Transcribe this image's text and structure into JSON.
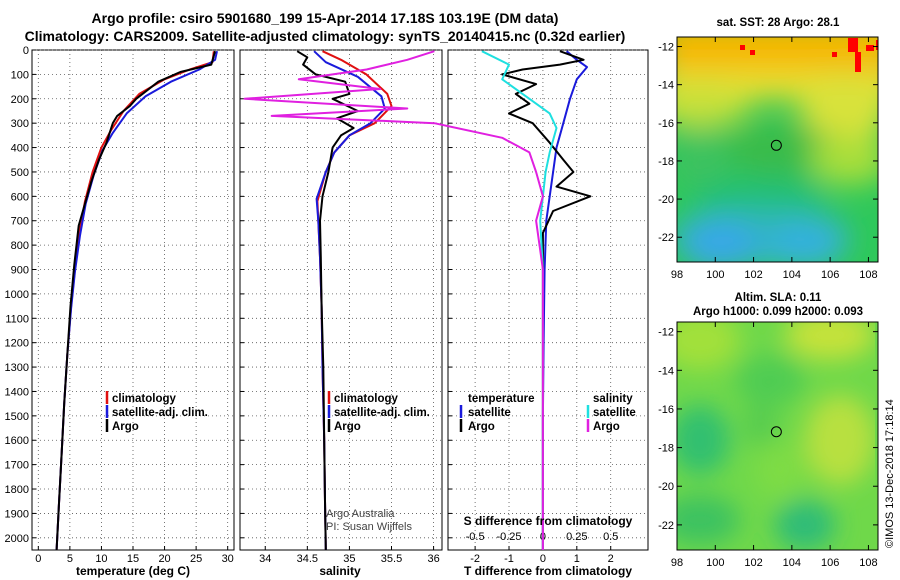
{
  "title_line1": "Argo profile: csiro 5901680_199 15-Apr-2014 17.18S 103.19E (DM data)",
  "title_line2": "Climatology: CARS2009. Satellite-adjusted climatology: synTS_20140415.nc (0.32d earlier)",
  "colors": {
    "climatology": "#e01010",
    "satellite": "#1a1adb",
    "argo": "#000000",
    "sat_salinity": "#1ee0e0",
    "argo_salinity": "#e020e0"
  },
  "credit": {
    "line1": "Argo Australia",
    "line2": "PI: Susan Wijffels"
  },
  "imos_stamp": "©IMOS 13-Dec-2018 17:18:14",
  "chart_data": [
    {
      "type": "line",
      "id": "temperature",
      "xlabel": "temperature (deg C)",
      "ylabel": "",
      "xlim": [
        -1,
        31
      ],
      "ylim": [
        2050,
        0
      ],
      "xticks": [
        "0",
        "5",
        "10",
        "15",
        "20",
        "25",
        "30"
      ],
      "yticks": [
        "0",
        "100",
        "200",
        "300",
        "400",
        "500",
        "600",
        "700",
        "800",
        "900",
        "1000",
        "1100",
        "1200",
        "1300",
        "1400",
        "1500",
        "1600",
        "1700",
        "1800",
        "1900",
        "2000"
      ],
      "legend": [
        "climatology",
        "satellite-adj. clim.",
        "Argo"
      ],
      "series": [
        {
          "name": "climatology",
          "points": [
            [
              27.8,
              5
            ],
            [
              27.6,
              50
            ],
            [
              24,
              80
            ],
            [
              20,
              120
            ],
            [
              16,
              180
            ],
            [
              13.5,
              250
            ],
            [
              11.5,
              330
            ],
            [
              10,
              400
            ],
            [
              8.6,
              500
            ],
            [
              7.4,
              620
            ],
            [
              6.5,
              750
            ],
            [
              5.8,
              900
            ],
            [
              5.2,
              1050
            ],
            [
              4.6,
              1250
            ],
            [
              4.1,
              1450
            ],
            [
              3.7,
              1650
            ],
            [
              3.3,
              1850
            ],
            [
              2.9,
              2050
            ]
          ]
        },
        {
          "name": "satellite-adj. clim.",
          "points": [
            [
              28.3,
              5
            ],
            [
              28.0,
              40
            ],
            [
              25.5,
              80
            ],
            [
              21,
              130
            ],
            [
              17,
              190
            ],
            [
              14,
              260
            ],
            [
              11.8,
              340
            ],
            [
              10.2,
              410
            ],
            [
              8.8,
              510
            ],
            [
              7.5,
              630
            ],
            [
              6.6,
              760
            ],
            [
              5.8,
              910
            ],
            [
              5.2,
              1060
            ],
            [
              4.6,
              1250
            ],
            [
              4.1,
              1450
            ],
            [
              3.7,
              1650
            ],
            [
              3.3,
              1850
            ],
            [
              2.9,
              2050
            ]
          ]
        },
        {
          "name": "Argo",
          "points": [
            [
              28.0,
              5
            ],
            [
              27.4,
              60
            ],
            [
              22.5,
              90
            ],
            [
              19,
              130
            ],
            [
              15.5,
              200
            ],
            [
              14.5,
              230
            ],
            [
              12.5,
              270
            ],
            [
              11.8,
              300
            ],
            [
              10.8,
              380
            ],
            [
              9.6,
              450
            ],
            [
              8.4,
              540
            ],
            [
              7.5,
              620
            ],
            [
              6.4,
              720
            ],
            [
              5.7,
              880
            ],
            [
              5.1,
              1050
            ],
            [
              4.6,
              1250
            ],
            [
              4.1,
              1450
            ],
            [
              3.7,
              1650
            ],
            [
              3.3,
              1850
            ],
            [
              2.9,
              2050
            ]
          ]
        }
      ]
    },
    {
      "type": "line",
      "id": "salinity",
      "xlabel": "salinity",
      "xlim": [
        33.7,
        36.1
      ],
      "ylim": [
        2050,
        0
      ],
      "xticks": [
        "34",
        "34.5",
        "35",
        "35.5",
        "36"
      ],
      "legend": [
        "climatology",
        "satellite-adj. clim.",
        "Argo"
      ],
      "series": [
        {
          "name": "climatology",
          "points": [
            [
              34.68,
              5
            ],
            [
              34.9,
              40
            ],
            [
              35.2,
              100
            ],
            [
              35.45,
              180
            ],
            [
              35.5,
              230
            ],
            [
              35.3,
              300
            ],
            [
              35.0,
              350
            ],
            [
              34.82,
              420
            ],
            [
              34.72,
              500
            ],
            [
              34.62,
              620
            ],
            [
              34.63,
              700
            ],
            [
              34.65,
              850
            ],
            [
              34.67,
              1050
            ],
            [
              34.68,
              1300
            ],
            [
              34.7,
              1600
            ],
            [
              34.71,
              1850
            ],
            [
              34.72,
              2050
            ]
          ]
        },
        {
          "name": "satellite-adj. clim.",
          "points": [
            [
              34.58,
              5
            ],
            [
              34.72,
              50
            ],
            [
              35.1,
              110
            ],
            [
              35.38,
              190
            ],
            [
              35.42,
              240
            ],
            [
              35.25,
              300
            ],
            [
              35.0,
              350
            ],
            [
              34.82,
              420
            ],
            [
              34.72,
              500
            ],
            [
              34.61,
              610
            ],
            [
              34.63,
              700
            ],
            [
              34.65,
              850
            ],
            [
              34.67,
              1050
            ],
            [
              34.68,
              1300
            ],
            [
              34.7,
              1600
            ],
            [
              34.71,
              1850
            ],
            [
              34.72,
              2050
            ]
          ]
        },
        {
          "name": "Argo",
          "points": [
            [
              34.38,
              5
            ],
            [
              34.5,
              30
            ],
            [
              34.45,
              60
            ],
            [
              34.6,
              100
            ],
            [
              34.95,
              130
            ],
            [
              35.0,
              180
            ],
            [
              34.8,
              200
            ],
            [
              35.1,
              250
            ],
            [
              34.85,
              280
            ],
            [
              35.05,
              320
            ],
            [
              34.9,
              350
            ],
            [
              34.8,
              400
            ],
            [
              34.75,
              500
            ],
            [
              34.68,
              600
            ],
            [
              34.65,
              700
            ],
            [
              34.66,
              850
            ],
            [
              34.67,
              1050
            ],
            [
              34.69,
              1300
            ],
            [
              34.7,
              1600
            ],
            [
              34.71,
              1850
            ],
            [
              34.72,
              2050
            ]
          ]
        }
      ]
    },
    {
      "type": "line",
      "id": "difference",
      "xlabel": "T difference from climatology",
      "top_xlabel": "S difference from climatology",
      "xlim": [
        -2.8,
        3.1
      ],
      "ylim": [
        2050,
        0
      ],
      "xticks": [
        "-2",
        "-1",
        "0",
        "1",
        "2"
      ],
      "top_xticks": [
        "-0.5",
        "-0.25",
        "0",
        "0.25",
        "0.5"
      ],
      "legend_left": {
        "title": "temperature",
        "items": [
          "satellite",
          "Argo"
        ]
      },
      "legend_right": {
        "title": "salinity",
        "items": [
          "satellite",
          "Argo"
        ]
      },
      "series": [
        {
          "name": "T satellite",
          "points": [
            [
              0.7,
              5
            ],
            [
              1.0,
              40
            ],
            [
              1.3,
              70
            ],
            [
              1.0,
              120
            ],
            [
              0.8,
              200
            ],
            [
              0.6,
              300
            ],
            [
              0.4,
              400
            ],
            [
              0.3,
              500
            ],
            [
              0.2,
              600
            ],
            [
              0.1,
              700
            ],
            [
              0.05,
              900
            ],
            [
              0.02,
              1200
            ],
            [
              0.0,
              1500
            ],
            [
              0.0,
              1800
            ],
            [
              0.0,
              2050
            ]
          ]
        },
        {
          "name": "T Argo",
          "points": [
            [
              0.5,
              5
            ],
            [
              1.2,
              40
            ],
            [
              0.5,
              60
            ],
            [
              -0.6,
              80
            ],
            [
              -1.2,
              100
            ],
            [
              -0.2,
              140
            ],
            [
              -0.8,
              180
            ],
            [
              -0.4,
              220
            ],
            [
              -1.0,
              260
            ],
            [
              -0.3,
              300
            ],
            [
              0.2,
              380
            ],
            [
              0.6,
              450
            ],
            [
              0.9,
              500
            ],
            [
              0.4,
              560
            ],
            [
              1.4,
              600
            ],
            [
              0.3,
              660
            ],
            [
              0.0,
              750
            ],
            [
              0.0,
              1000
            ],
            [
              0.0,
              1500
            ],
            [
              0.0,
              2050
            ]
          ]
        },
        {
          "name": "S satellite",
          "points": [
            [
              -0.45,
              5
            ],
            [
              -0.25,
              60
            ],
            [
              -0.3,
              120
            ],
            [
              -0.1,
              200
            ],
            [
              0.05,
              260
            ],
            [
              0.1,
              320
            ],
            [
              0.05,
              420
            ],
            [
              0.02,
              500
            ],
            [
              0.0,
              600
            ],
            [
              -0.02,
              700
            ],
            [
              0.0,
              900
            ],
            [
              0.0,
              1300
            ],
            [
              0.0,
              1700
            ],
            [
              0.0,
              2050
            ]
          ]
        },
        {
          "name": "S Argo",
          "points": [
            [
              -0.8,
              5
            ],
            [
              -1.0,
              40
            ],
            [
              -1.3,
              80
            ],
            [
              -1.8,
              120
            ],
            [
              -1.2,
              160
            ],
            [
              -2.2,
              200
            ],
            [
              -1.0,
              240
            ],
            [
              -2.0,
              270
            ],
            [
              -0.8,
              300
            ],
            [
              -0.3,
              360
            ],
            [
              -0.1,
              420
            ],
            [
              -0.05,
              500
            ],
            [
              0.0,
              600
            ],
            [
              -0.05,
              700
            ],
            [
              0.0,
              900
            ],
            [
              0.0,
              1300
            ],
            [
              0.0,
              1700
            ],
            [
              0.0,
              2050
            ]
          ]
        }
      ]
    },
    {
      "type": "heatmap",
      "id": "sst-map",
      "title": "sat. SST: 28 Argo: 28.1",
      "xticks": [
        "98",
        "100",
        "102",
        "104",
        "106",
        "108"
      ],
      "yticks": [
        "-12",
        "-14",
        "-16",
        "-18",
        "-20",
        "-22"
      ],
      "xlim": [
        98,
        108.5
      ],
      "ylim": [
        -23.3,
        -11.5
      ],
      "argo_position": [
        103.19,
        -17.18
      ]
    },
    {
      "type": "heatmap",
      "id": "sla-map",
      "title_line1": "Altim. SLA: 0.11",
      "title_line2": "Argo h1000: 0.099 h2000: 0.093",
      "xticks": [
        "98",
        "100",
        "102",
        "104",
        "106",
        "108"
      ],
      "yticks": [
        "-12",
        "-14",
        "-16",
        "-18",
        "-20",
        "-22"
      ],
      "xlim": [
        98,
        108.5
      ],
      "ylim": [
        -23.3,
        -11.5
      ],
      "argo_position": [
        103.19,
        -17.18
      ]
    }
  ]
}
